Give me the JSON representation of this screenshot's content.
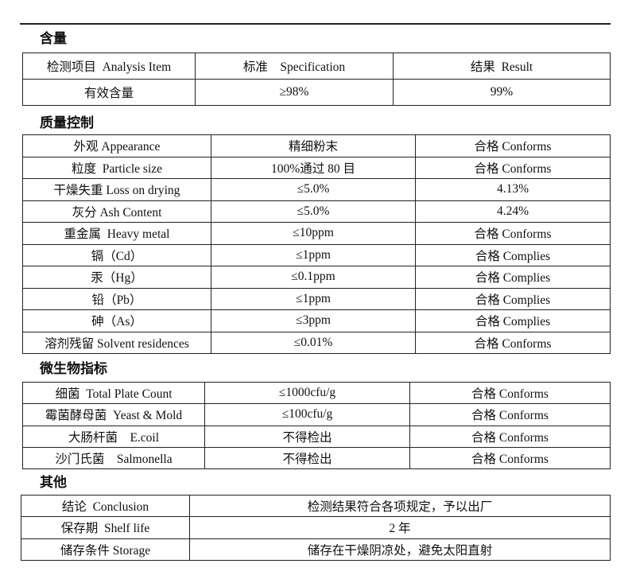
{
  "sections": {
    "content": {
      "title": "含量",
      "headers": [
        "检测项目  Analysis Item",
        "标准    Specification",
        "结果  Result"
      ],
      "rows": [
        [
          "有效含量",
          "≥98%",
          "99%"
        ]
      ]
    },
    "quality": {
      "title": "质量控制",
      "rows": [
        [
          "外观 Appearance",
          "精细粉末",
          "合格 Conforms"
        ],
        [
          "粒度  Particle size",
          "100%通过 80 目",
          "合格 Conforms"
        ],
        [
          "干燥失重 Loss on drying",
          "≤5.0%",
          "4.13%"
        ],
        [
          "灰分 Ash Content",
          "≤5.0%",
          "4.24%"
        ],
        [
          "重金属  Heavy metal",
          "≤10ppm",
          "合格 Conforms"
        ],
        [
          "镉（Cd）",
          "≤1ppm",
          "合格 Complies"
        ],
        [
          "汞（Hg）",
          "≤0.1ppm",
          "合格 Complies"
        ],
        [
          "铅（Pb）",
          "≤1ppm",
          "合格 Complies"
        ],
        [
          "砷（As）",
          "≤3ppm",
          "合格 Complies"
        ],
        [
          "溶剂残留 Solvent residences",
          "≤0.01%",
          "合格 Conforms"
        ]
      ]
    },
    "micro": {
      "title": "微生物指标",
      "rows": [
        [
          "细菌  Total Plate Count",
          "≤1000cfu/g",
          "合格 Conforms"
        ],
        [
          "霉菌酵母菌  Yeast & Mold",
          "≤100cfu/g",
          "合格 Conforms"
        ],
        [
          "大肠杆菌    E.coil",
          "不得检出",
          "合格 Conforms"
        ],
        [
          "沙门氏菌    Salmonella",
          "不得检出",
          "合格 Conforms"
        ]
      ]
    },
    "other": {
      "title": "其他",
      "rows": [
        [
          "结论  Conclusion",
          "检测结果符合各项规定，予以出厂"
        ],
        [
          "保存期  Shelf life",
          "2 年"
        ],
        [
          "储存条件 Storage",
          "储存在干燥阴凉处，避免太阳直射"
        ]
      ]
    }
  }
}
